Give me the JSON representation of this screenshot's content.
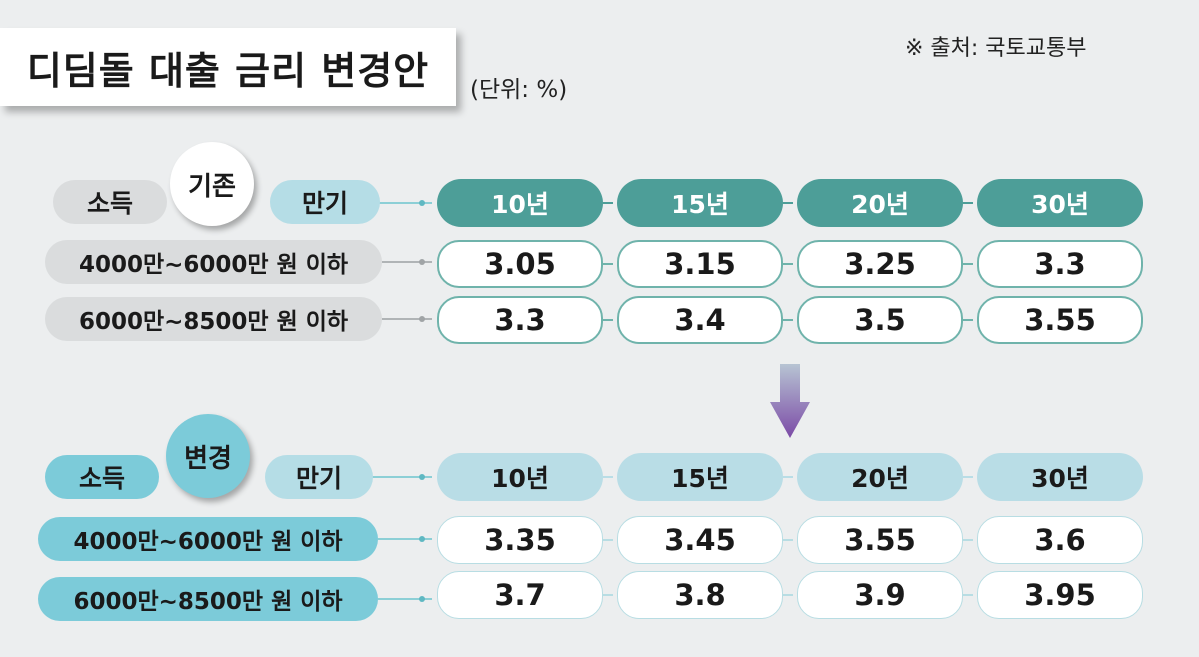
{
  "title": "디딤돌 대출 금리 변경안",
  "unit": "(단위: %)",
  "source": "※ 출처: 국토교통부",
  "labels": {
    "income": "소득",
    "term": "만기"
  },
  "colors": {
    "teal_header": "#4d9e98",
    "light_header": "#b9dde6",
    "blue_label": "#7ccbd9",
    "arrow": "#7b4aa6"
  },
  "chart_data": [
    {
      "type": "table",
      "title": "기존",
      "categories": [
        "10년",
        "15년",
        "20년",
        "30년"
      ],
      "series": [
        {
          "name": "4000만~6000만 원 이하",
          "values": [
            3.05,
            3.15,
            3.25,
            3.3
          ]
        },
        {
          "name": "6000만~8500만 원 이하",
          "values": [
            3.3,
            3.4,
            3.5,
            3.55
          ]
        }
      ]
    },
    {
      "type": "table",
      "title": "변경",
      "categories": [
        "10년",
        "15년",
        "20년",
        "30년"
      ],
      "series": [
        {
          "name": "4000만~6000만 원 이하",
          "values": [
            3.35,
            3.45,
            3.55,
            3.6
          ]
        },
        {
          "name": "6000만~8500만 원 이하",
          "values": [
            3.7,
            3.8,
            3.9,
            3.95
          ]
        }
      ]
    }
  ]
}
